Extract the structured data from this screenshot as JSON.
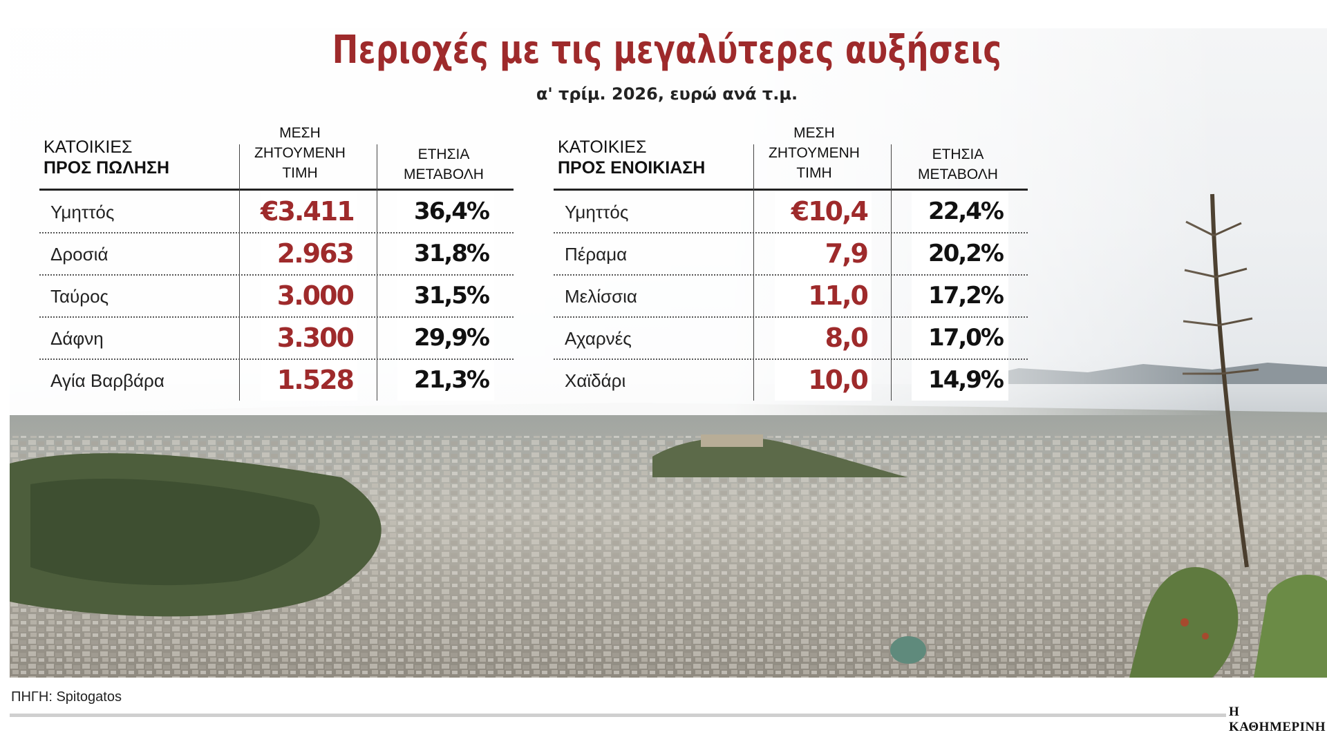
{
  "title": "Περιοχές με τις μεγαλύτερες αυξήσεις",
  "subtitle": "α' τρίμ. 2026, ευρώ ανά τ.μ.",
  "sale": {
    "heading_line1": "ΚΑΤΟΙΚΙΕΣ",
    "heading_line2": "ΠΡΟΣ ΠΩΛΗΣΗ",
    "col_price_line1": "ΜΕΣΗ",
    "col_price_line2": "ΖΗΤΟΥΜΕΝΗ",
    "col_price_line3": "ΤΙΜΗ",
    "col_change_line1": "ΕΤΗΣΙΑ",
    "col_change_line2": "ΜΕΤΑΒΟΛΗ",
    "rows": [
      {
        "area": "Υμηττός",
        "price": "€3.411",
        "change": "36,4%"
      },
      {
        "area": "Δροσιά",
        "price": "2.963",
        "change": "31,8%"
      },
      {
        "area": "Ταύρος",
        "price": "3.000",
        "change": "31,5%"
      },
      {
        "area": "Δάφνη",
        "price": "3.300",
        "change": "29,9%"
      },
      {
        "area": "Αγία Βαρβάρα",
        "price": "1.528",
        "change": "21,3%"
      }
    ]
  },
  "rent": {
    "heading_line1": "ΚΑΤΟΙΚΙΕΣ",
    "heading_line2": "ΠΡΟΣ ΕΝΟΙΚΙΑΣΗ",
    "col_price_line1": "ΜΕΣΗ",
    "col_price_line2": "ΖΗΤΟΥΜΕΝΗ",
    "col_price_line3": "ΤΙΜΗ",
    "col_change_line1": "ΕΤΗΣΙΑ",
    "col_change_line2": "ΜΕΤΑΒΟΛΗ",
    "rows": [
      {
        "area": "Υμηττός",
        "price": "€10,4",
        "change": "22,4%"
      },
      {
        "area": "Πέραμα",
        "price": "7,9",
        "change": "20,2%"
      },
      {
        "area": "Μελίσσια",
        "price": "11,0",
        "change": "17,2%"
      },
      {
        "area": "Αχαρνές",
        "price": "8,0",
        "change": "17,0%"
      },
      {
        "area": "Χαϊδάρι",
        "price": "10,0",
        "change": "14,9%"
      }
    ]
  },
  "source": "ΠΗΓΗ: Spitogatos",
  "brand": "Η ΚΑΘΗΜΕΡΙΝΗ",
  "colors": {
    "accent": "#9e2a2b",
    "text": "#111111",
    "rule": "#222222"
  }
}
